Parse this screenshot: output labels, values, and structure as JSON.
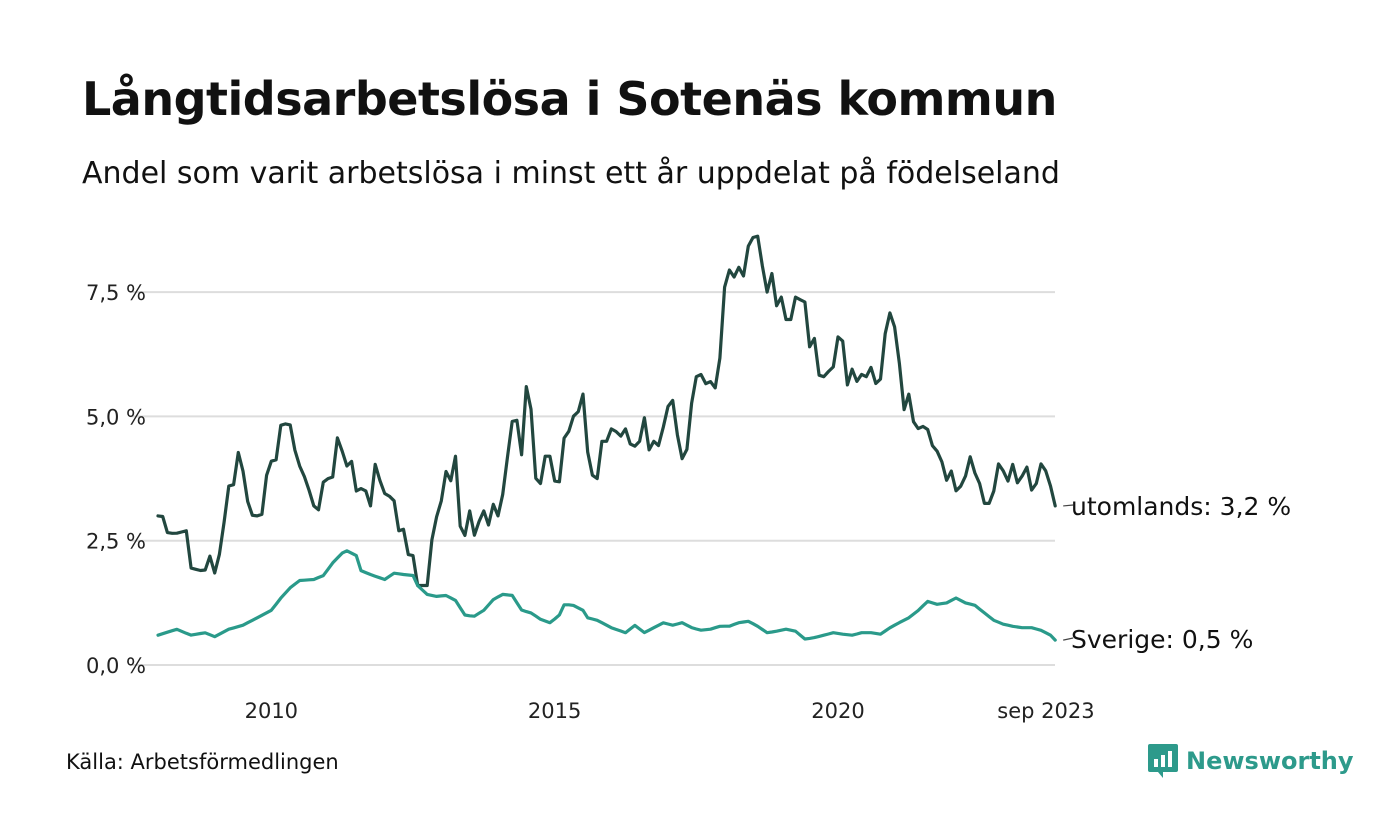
{
  "title": "Långtidsarbetslösa i Sotenäs kommun",
  "subtitle": "Andel som varit arbetslösa i minst ett år uppdelat på födelseland",
  "source": "Källa: Arbetsförmedlingen",
  "brand": {
    "name": "Newsworthy",
    "color": "#2d9a8b"
  },
  "chart_data": {
    "type": "line",
    "x_start": 2008.0,
    "x_step_months": 1,
    "ylim": [
      0,
      8.75
    ],
    "yticks": [
      {
        "value": 0,
        "label": "0,0 %"
      },
      {
        "value": 2.5,
        "label": "2,5 %"
      },
      {
        "value": 5,
        "label": "5,0 %"
      },
      {
        "value": 7.5,
        "label": "7,5 %"
      }
    ],
    "xticks": [
      {
        "value": 2010,
        "label": "2010"
      },
      {
        "value": 2015,
        "label": "2015"
      },
      {
        "value": 2020,
        "label": "2020"
      },
      {
        "value": 2023.67,
        "label": "sep 2023"
      }
    ],
    "grid": true,
    "series": [
      {
        "name": "utomlands",
        "label": "utomlands: 3,2 %",
        "color": "#22473f",
        "anchors": [
          [
            2008.0,
            3.0
          ],
          [
            2008.08,
            3.0
          ],
          [
            2008.17,
            2.65
          ],
          [
            2008.33,
            2.65
          ],
          [
            2008.5,
            2.7
          ],
          [
            2008.58,
            1.95
          ],
          [
            2008.75,
            1.9
          ],
          [
            2008.83,
            1.9
          ],
          [
            2008.92,
            2.2
          ],
          [
            2009.0,
            1.85
          ],
          [
            2009.08,
            2.2
          ],
          [
            2009.17,
            2.9
          ],
          [
            2009.25,
            3.6
          ],
          [
            2009.33,
            3.6
          ],
          [
            2009.42,
            4.3
          ],
          [
            2009.5,
            3.9
          ],
          [
            2009.58,
            3.3
          ],
          [
            2009.67,
            3.0
          ],
          [
            2009.75,
            3.0
          ],
          [
            2009.83,
            3.0
          ],
          [
            2009.92,
            3.85
          ],
          [
            2010.0,
            4.1
          ],
          [
            2010.08,
            4.1
          ],
          [
            2010.17,
            4.85
          ],
          [
            2010.25,
            4.85
          ],
          [
            2010.33,
            4.85
          ],
          [
            2010.42,
            4.3
          ],
          [
            2010.5,
            4.0
          ],
          [
            2010.58,
            3.8
          ],
          [
            2010.67,
            3.5
          ],
          [
            2010.75,
            3.2
          ],
          [
            2010.83,
            3.1
          ],
          [
            2010.92,
            3.7
          ],
          [
            2011.0,
            3.75
          ],
          [
            2011.08,
            3.75
          ],
          [
            2011.17,
            4.6
          ],
          [
            2011.25,
            4.3
          ],
          [
            2011.33,
            4.0
          ],
          [
            2011.42,
            4.1
          ],
          [
            2011.5,
            3.5
          ],
          [
            2011.58,
            3.55
          ],
          [
            2011.67,
            3.5
          ],
          [
            2011.75,
            3.2
          ],
          [
            2011.83,
            4.05
          ],
          [
            2011.92,
            3.7
          ],
          [
            2012.0,
            3.45
          ],
          [
            2012.08,
            3.4
          ],
          [
            2012.17,
            3.3
          ],
          [
            2012.25,
            2.7
          ],
          [
            2012.33,
            2.75
          ],
          [
            2012.42,
            2.2
          ],
          [
            2012.5,
            2.2
          ],
          [
            2012.58,
            1.6
          ],
          [
            2012.67,
            1.6
          ],
          [
            2012.75,
            1.6
          ],
          [
            2012.83,
            2.5
          ],
          [
            2012.92,
            3.0
          ],
          [
            2013.0,
            3.3
          ],
          [
            2013.08,
            3.9
          ],
          [
            2013.17,
            3.7
          ],
          [
            2013.25,
            4.2
          ],
          [
            2013.33,
            2.8
          ],
          [
            2013.42,
            2.6
          ],
          [
            2013.5,
            3.1
          ],
          [
            2013.58,
            2.6
          ],
          [
            2013.67,
            2.9
          ],
          [
            2013.75,
            3.1
          ],
          [
            2013.83,
            2.8
          ],
          [
            2013.92,
            3.25
          ],
          [
            2014.0,
            3.0
          ],
          [
            2014.08,
            3.4
          ],
          [
            2014.17,
            4.2
          ],
          [
            2014.25,
            4.9
          ],
          [
            2014.33,
            4.95
          ],
          [
            2014.42,
            4.2
          ],
          [
            2014.5,
            5.6
          ],
          [
            2014.58,
            5.2
          ],
          [
            2014.67,
            3.7
          ],
          [
            2014.75,
            3.65
          ],
          [
            2014.83,
            4.2
          ],
          [
            2014.92,
            4.2
          ],
          [
            2015.0,
            3.7
          ],
          [
            2015.08,
            3.65
          ],
          [
            2015.17,
            4.6
          ],
          [
            2015.25,
            4.7
          ],
          [
            2015.33,
            5.0
          ],
          [
            2015.42,
            5.1
          ],
          [
            2015.5,
            5.45
          ],
          [
            2015.58,
            4.3
          ],
          [
            2015.67,
            3.8
          ],
          [
            2015.75,
            3.75
          ],
          [
            2015.83,
            4.5
          ],
          [
            2015.92,
            4.5
          ],
          [
            2016.0,
            4.75
          ],
          [
            2016.08,
            4.7
          ],
          [
            2016.17,
            4.6
          ],
          [
            2016.25,
            4.75
          ],
          [
            2016.33,
            4.45
          ],
          [
            2016.42,
            4.4
          ],
          [
            2016.5,
            4.5
          ],
          [
            2016.58,
            5.0
          ],
          [
            2016.67,
            4.3
          ],
          [
            2016.75,
            4.5
          ],
          [
            2016.83,
            4.4
          ],
          [
            2016.92,
            4.8
          ],
          [
            2017.0,
            5.2
          ],
          [
            2017.08,
            5.35
          ],
          [
            2017.17,
            4.6
          ],
          [
            2017.25,
            4.15
          ],
          [
            2017.33,
            4.3
          ],
          [
            2017.42,
            5.3
          ],
          [
            2017.5,
            5.8
          ],
          [
            2017.58,
            5.85
          ],
          [
            2017.67,
            5.65
          ],
          [
            2017.75,
            5.7
          ],
          [
            2017.83,
            5.55
          ],
          [
            2017.92,
            6.2
          ],
          [
            2018.0,
            7.6
          ],
          [
            2018.08,
            7.95
          ],
          [
            2018.17,
            7.8
          ],
          [
            2018.25,
            8.0
          ],
          [
            2018.33,
            7.8
          ],
          [
            2018.42,
            8.45
          ],
          [
            2018.5,
            8.6
          ],
          [
            2018.58,
            8.65
          ],
          [
            2018.67,
            8.0
          ],
          [
            2018.75,
            7.5
          ],
          [
            2018.83,
            7.9
          ],
          [
            2018.92,
            7.2
          ],
          [
            2019.0,
            7.4
          ],
          [
            2019.08,
            6.95
          ],
          [
            2019.17,
            6.95
          ],
          [
            2019.25,
            7.4
          ],
          [
            2019.33,
            7.35
          ],
          [
            2019.42,
            7.3
          ],
          [
            2019.5,
            6.4
          ],
          [
            2019.58,
            6.6
          ],
          [
            2019.67,
            5.8
          ],
          [
            2019.75,
            5.8
          ],
          [
            2019.83,
            5.9
          ],
          [
            2019.92,
            6.0
          ],
          [
            2020.0,
            6.6
          ],
          [
            2020.08,
            6.55
          ],
          [
            2020.17,
            5.6
          ],
          [
            2020.25,
            5.95
          ],
          [
            2020.33,
            5.7
          ],
          [
            2020.42,
            5.85
          ],
          [
            2020.5,
            5.8
          ],
          [
            2020.58,
            6.0
          ],
          [
            2020.67,
            5.65
          ],
          [
            2020.75,
            5.75
          ],
          [
            2020.83,
            6.65
          ],
          [
            2020.92,
            7.1
          ],
          [
            2021.0,
            6.8
          ],
          [
            2021.08,
            6.1
          ],
          [
            2021.17,
            5.1
          ],
          [
            2021.25,
            5.45
          ],
          [
            2021.33,
            4.9
          ],
          [
            2021.42,
            4.75
          ],
          [
            2021.5,
            4.8
          ],
          [
            2021.58,
            4.75
          ],
          [
            2021.67,
            4.4
          ],
          [
            2021.75,
            4.3
          ],
          [
            2021.83,
            4.1
          ],
          [
            2021.92,
            3.7
          ],
          [
            2022.0,
            3.9
          ],
          [
            2022.08,
            3.5
          ],
          [
            2022.17,
            3.6
          ],
          [
            2022.25,
            3.8
          ],
          [
            2022.33,
            4.2
          ],
          [
            2022.42,
            3.85
          ],
          [
            2022.5,
            3.65
          ],
          [
            2022.58,
            3.25
          ],
          [
            2022.67,
            3.25
          ],
          [
            2022.75,
            3.5
          ],
          [
            2022.83,
            4.05
          ],
          [
            2022.92,
            3.9
          ],
          [
            2023.0,
            3.7
          ],
          [
            2023.08,
            4.05
          ],
          [
            2023.17,
            3.65
          ],
          [
            2023.25,
            3.8
          ],
          [
            2023.33,
            4.0
          ],
          [
            2023.42,
            3.5
          ],
          [
            2023.5,
            3.65
          ],
          [
            2023.58,
            4.05
          ],
          [
            2023.67,
            3.9
          ],
          [
            2023.75,
            3.6
          ],
          [
            2023.83,
            3.2
          ]
        ]
      },
      {
        "name": "Sverige",
        "label": "Sverige: 0,5 %",
        "color": "#2a9a8a",
        "anchors": [
          [
            2008.0,
            0.6
          ],
          [
            2008.33,
            0.72
          ],
          [
            2008.58,
            0.6
          ],
          [
            2008.83,
            0.65
          ],
          [
            2009.0,
            0.57
          ],
          [
            2009.25,
            0.72
          ],
          [
            2009.5,
            0.8
          ],
          [
            2009.75,
            0.95
          ],
          [
            2010.0,
            1.1
          ],
          [
            2010.17,
            1.35
          ],
          [
            2010.33,
            1.55
          ],
          [
            2010.5,
            1.7
          ],
          [
            2010.75,
            1.72
          ],
          [
            2010.92,
            1.8
          ],
          [
            2011.08,
            2.05
          ],
          [
            2011.25,
            2.25
          ],
          [
            2011.33,
            2.3
          ],
          [
            2011.5,
            2.2
          ],
          [
            2011.58,
            1.9
          ],
          [
            2011.75,
            1.82
          ],
          [
            2012.0,
            1.72
          ],
          [
            2012.17,
            1.85
          ],
          [
            2012.33,
            1.82
          ],
          [
            2012.5,
            1.8
          ],
          [
            2012.58,
            1.6
          ],
          [
            2012.75,
            1.42
          ],
          [
            2012.92,
            1.38
          ],
          [
            2013.08,
            1.4
          ],
          [
            2013.25,
            1.3
          ],
          [
            2013.42,
            1.0
          ],
          [
            2013.58,
            0.98
          ],
          [
            2013.75,
            1.1
          ],
          [
            2013.92,
            1.32
          ],
          [
            2014.08,
            1.42
          ],
          [
            2014.25,
            1.4
          ],
          [
            2014.42,
            1.1
          ],
          [
            2014.58,
            1.05
          ],
          [
            2014.75,
            0.92
          ],
          [
            2014.92,
            0.85
          ],
          [
            2015.08,
            1.0
          ],
          [
            2015.17,
            1.22
          ],
          [
            2015.33,
            1.2
          ],
          [
            2015.5,
            1.1
          ],
          [
            2015.58,
            0.95
          ],
          [
            2015.75,
            0.9
          ],
          [
            2016.0,
            0.75
          ],
          [
            2016.25,
            0.65
          ],
          [
            2016.42,
            0.8
          ],
          [
            2016.58,
            0.65
          ],
          [
            2016.75,
            0.75
          ],
          [
            2016.92,
            0.85
          ],
          [
            2017.08,
            0.8
          ],
          [
            2017.25,
            0.85
          ],
          [
            2017.42,
            0.75
          ],
          [
            2017.58,
            0.7
          ],
          [
            2017.75,
            0.72
          ],
          [
            2017.92,
            0.78
          ],
          [
            2018.08,
            0.78
          ],
          [
            2018.25,
            0.85
          ],
          [
            2018.42,
            0.88
          ],
          [
            2018.58,
            0.78
          ],
          [
            2018.75,
            0.65
          ],
          [
            2018.92,
            0.68
          ],
          [
            2019.08,
            0.72
          ],
          [
            2019.25,
            0.68
          ],
          [
            2019.42,
            0.52
          ],
          [
            2019.58,
            0.55
          ],
          [
            2019.75,
            0.6
          ],
          [
            2019.92,
            0.65
          ],
          [
            2020.08,
            0.62
          ],
          [
            2020.25,
            0.6
          ],
          [
            2020.42,
            0.65
          ],
          [
            2020.58,
            0.65
          ],
          [
            2020.75,
            0.62
          ],
          [
            2020.92,
            0.75
          ],
          [
            2021.08,
            0.85
          ],
          [
            2021.25,
            0.95
          ],
          [
            2021.42,
            1.1
          ],
          [
            2021.58,
            1.28
          ],
          [
            2021.75,
            1.22
          ],
          [
            2021.92,
            1.25
          ],
          [
            2022.08,
            1.35
          ],
          [
            2022.25,
            1.25
          ],
          [
            2022.42,
            1.2
          ],
          [
            2022.58,
            1.05
          ],
          [
            2022.75,
            0.9
          ],
          [
            2022.92,
            0.82
          ],
          [
            2023.08,
            0.78
          ],
          [
            2023.25,
            0.75
          ],
          [
            2023.42,
            0.75
          ],
          [
            2023.58,
            0.7
          ],
          [
            2023.75,
            0.6
          ],
          [
            2023.83,
            0.5
          ]
        ]
      }
    ]
  }
}
